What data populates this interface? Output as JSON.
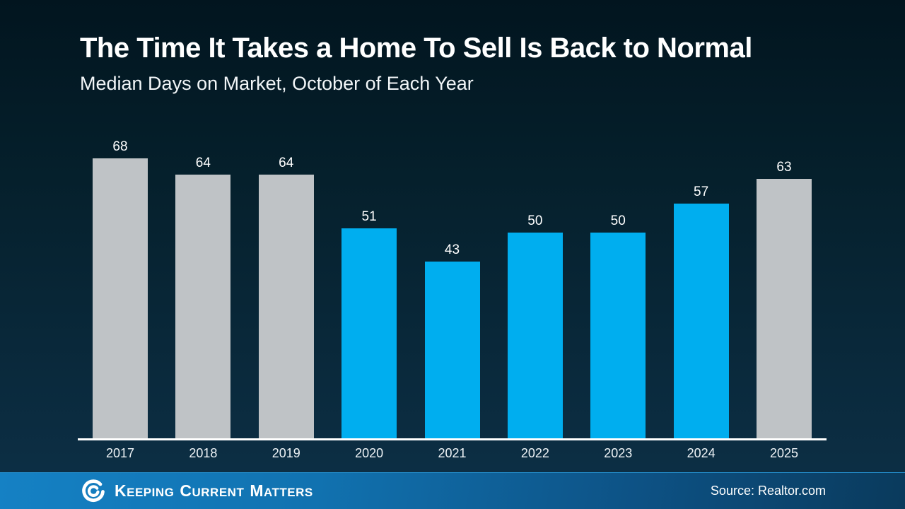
{
  "header": {
    "title": "The Time It Takes a Home To Sell Is Back to Normal",
    "subtitle": "Median Days on Market, October of Each Year"
  },
  "chart_data": {
    "type": "bar",
    "title": "The Time It Takes a Home To Sell Is Back to Normal",
    "subtitle": "Median Days on Market, October of Each Year",
    "categories": [
      "2017",
      "2018",
      "2019",
      "2020",
      "2021",
      "2022",
      "2023",
      "2024",
      "2025"
    ],
    "values": [
      68,
      64,
      64,
      51,
      43,
      50,
      50,
      57,
      63
    ],
    "data_labels": [
      "68",
      "64",
      "64",
      "51",
      "43",
      "50",
      "50",
      "57",
      "63"
    ],
    "xlabel": "",
    "ylabel": "",
    "ylim": [
      0,
      74
    ],
    "grid": false,
    "legend": "none",
    "bar_color_keys": [
      "gray",
      "gray",
      "gray",
      "blue",
      "blue",
      "blue",
      "blue",
      "blue",
      "gray"
    ],
    "colors": {
      "gray": "#bfc3c6",
      "blue": "#00aeef",
      "axis": "#ffffff",
      "label_text": "#ffffff",
      "background_top": "#02151f",
      "background_bottom": "#0d3047"
    }
  },
  "footer": {
    "logo_icon": "kcm-swirl-icon",
    "brand_words": [
      "Keeping",
      "Current",
      "Matters"
    ],
    "source": "Source: Realtor.com",
    "bar_color_left": "#1581c4",
    "bar_color_right": "#0a3a5c"
  }
}
